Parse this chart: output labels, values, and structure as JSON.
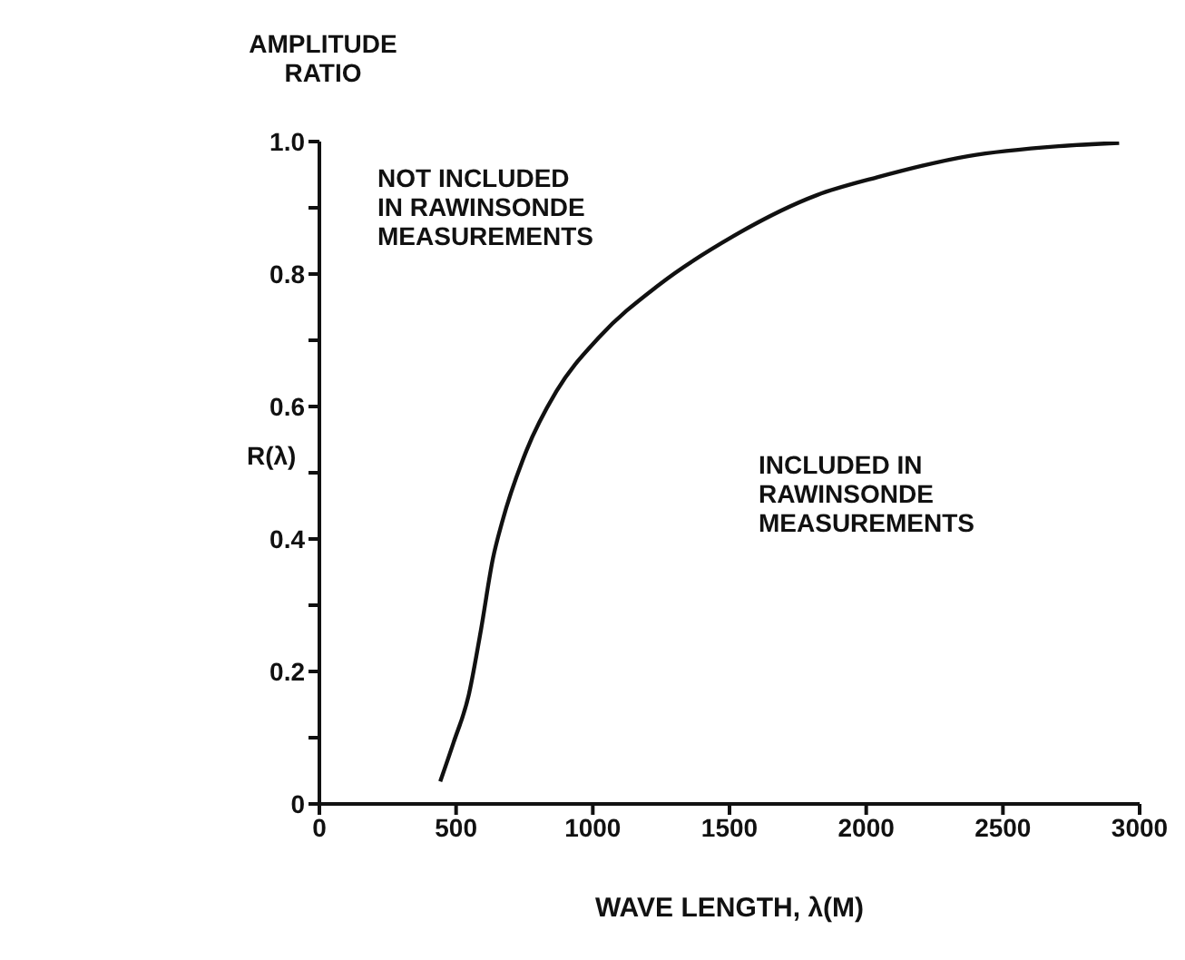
{
  "chart_data": {
    "type": "line",
    "ylabel": "AMPLITUDE RATIO",
    "xlabel": "WAVE LENGTH, λ(M)",
    "annotations": [
      "R(λ)",
      "NOT INCLUDED\nIN RAWINSONDE\nMEASUREMENTS",
      "INCLUDED IN\nRAWINSONDE\nMEASUREMENTS"
    ],
    "x": [
      442,
      491,
      546,
      591,
      635,
      668,
      757,
      867,
      1022,
      1243,
      1509,
      1819,
      2040,
      2372,
      2704,
      2925
    ],
    "series": [
      {
        "color": "#111111",
        "values": [
          0.034,
          0.093,
          0.164,
          0.263,
          0.371,
          0.425,
          0.533,
          0.623,
          0.704,
          0.784,
          0.856,
          0.919,
          0.946,
          0.978,
          0.993,
          0.998
        ]
      }
    ],
    "xlim": [
      0,
      3000
    ],
    "xticks": [
      0,
      500,
      1000,
      1500,
      2000,
      2500,
      3000
    ],
    "ylim": [
      0,
      1.0
    ],
    "yticks": [
      0,
      {
        "value": 0.1,
        "label": null
      },
      0.2,
      {
        "value": 0.3,
        "label": null
      },
      0.4,
      {
        "value": 0.5,
        "label": null
      },
      0.6,
      {
        "value": 0.7,
        "label": null
      },
      0.8,
      {
        "value": 0.9,
        "label": null
      },
      {
        "value": 1.0,
        "label": "1.0"
      }
    ],
    "grid": false,
    "legend": false,
    "marker": "none",
    "line_style": "solid"
  }
}
